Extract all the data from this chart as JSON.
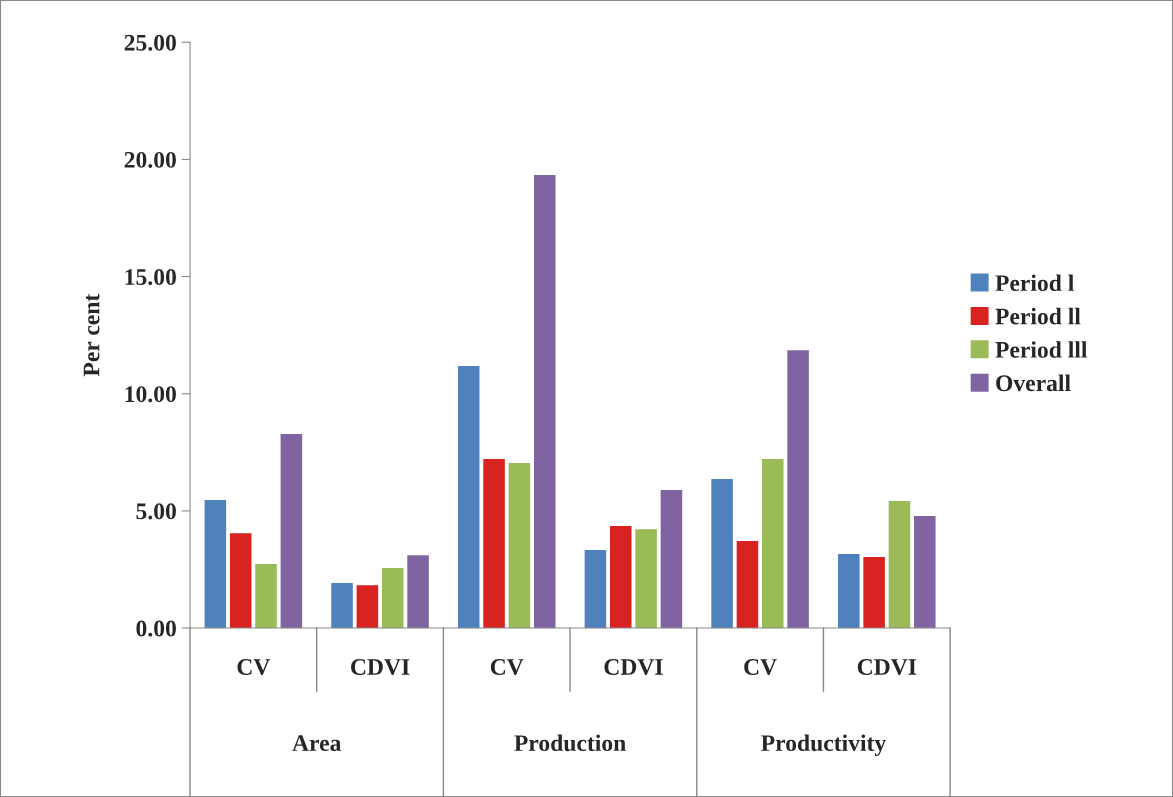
{
  "chart_data": {
    "type": "bar",
    "ylabel": "Per cent",
    "categories": [
      "CV",
      "CDVI",
      "CV",
      "CDVI",
      "CV",
      "CDVI"
    ],
    "annotations": [
      "Area",
      "Production",
      "Productivity"
    ],
    "series": [
      {
        "name": "Period l",
        "color": "#4f81bd",
        "values": [
          5.46,
          1.92,
          11.18,
          3.33,
          6.36,
          3.16
        ]
      },
      {
        "name": "Period ll",
        "color": "#d92321",
        "values": [
          4.05,
          1.83,
          7.21,
          4.35,
          3.71,
          3.03
        ]
      },
      {
        "name": "Period lll",
        "color": "#9bbb59",
        "values": [
          2.73,
          2.56,
          7.04,
          4.22,
          7.21,
          5.42
        ]
      },
      {
        "name": "Overall",
        "color": "#8064a2",
        "values": [
          8.28,
          3.11,
          19.33,
          5.89,
          11.86,
          4.78
        ]
      }
    ],
    "ylim": [
      0,
      25
    ],
    "yticks": [
      {
        "value": 0,
        "label": "0.00"
      },
      {
        "value": 5,
        "label": "5.00"
      },
      {
        "value": 10,
        "label": "10.00"
      },
      {
        "value": 15,
        "label": "15.00"
      },
      {
        "value": 20,
        "label": "20.00"
      },
      {
        "value": 25,
        "label": "25.00"
      }
    ],
    "grid": false,
    "legend": "right"
  }
}
